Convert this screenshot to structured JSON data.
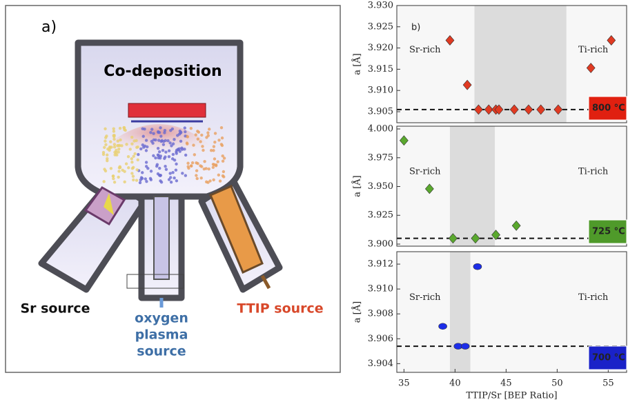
{
  "diagram": {
    "panel_label": "a)",
    "title": "Co-deposition",
    "sr_label": "Sr source",
    "oxygen_label": [
      "oxygen",
      "plasma",
      "source"
    ],
    "ttip_label": "TTIP source"
  },
  "chart_data": [
    {
      "type": "scatter",
      "panel_label": "b)",
      "ylabel": "a [Å]",
      "marker": "diamond",
      "color": "#e03a22",
      "x": [
        39.5,
        41.2,
        42.3,
        43.3,
        44.0,
        44.3,
        45.8,
        47.2,
        48.4,
        50.1,
        53.3,
        55.3
      ],
      "values": [
        3.9218,
        3.9113,
        3.9055,
        3.9055,
        3.9055,
        3.9055,
        3.9055,
        3.9055,
        3.9055,
        3.9055,
        3.9153,
        3.9218
      ],
      "xlim": [
        34.3,
        56.8
      ],
      "ylim": [
        3.9024,
        3.93
      ],
      "yticks": [
        3.905,
        {
          "value": 3.91,
          "label": "3.910"
        },
        3.915,
        {
          "value": 3.92,
          "label": "3.920"
        },
        3.925,
        {
          "value": 3.93,
          "label": "3.930"
        }
      ],
      "shaded_x": [
        41.9,
        50.9
      ],
      "hline": 3.9055,
      "annotations": [
        "Sr-rich",
        "Ti-rich"
      ],
      "temperature_label": "800 °C",
      "temperature_color": "#e02010"
    },
    {
      "type": "scatter",
      "ylabel": "a [Å]",
      "marker": "diamond",
      "color": "#5aa82e",
      "x": [
        35.0,
        37.5,
        39.8,
        42.0,
        44.0,
        46.0
      ],
      "values": [
        3.99,
        3.948,
        3.905,
        3.905,
        3.908,
        3.916
      ],
      "xlim": [
        34.3,
        56.8
      ],
      "ylim": [
        3.8982,
        4.0024
      ],
      "yticks": [
        {
          "value": 3.9,
          "label": "3.900"
        },
        3.925,
        {
          "value": 3.95,
          "label": "3.950"
        },
        3.975,
        {
          "value": 4,
          "label": "4.000"
        }
      ],
      "shaded_x": [
        39.5,
        43.9
      ],
      "hline": 3.905,
      "annotations": [
        "Sr-rich",
        "Ti-rich"
      ],
      "temperature_label": "725 °C",
      "temperature_color": "#4f9a2a"
    },
    {
      "type": "scatter",
      "ylabel": "a [Å]",
      "xlabel": "TTIP/Sr [BEP Ratio]",
      "marker": "circle",
      "color": "#1d2ee8",
      "x": [
        38.8,
        40.3,
        41.0,
        42.2
      ],
      "values": [
        3.907,
        3.9054,
        3.9054,
        3.9118
      ],
      "xlim": [
        34.3,
        56.8
      ],
      "ylim": [
        3.9033,
        3.913
      ],
      "xticks": [
        35,
        40,
        45,
        50,
        55
      ],
      "yticks": [
        3.904,
        3.906,
        3.908,
        {
          "value": 3.91,
          "label": "3.910"
        },
        3.912
      ],
      "shaded_x": [
        39.5,
        41.5
      ],
      "hline": 3.9054,
      "annotations": [
        "Sr-rich",
        "Ti-rich"
      ],
      "temperature_label": "700 °C",
      "temperature_color": "#1a22c8"
    }
  ]
}
